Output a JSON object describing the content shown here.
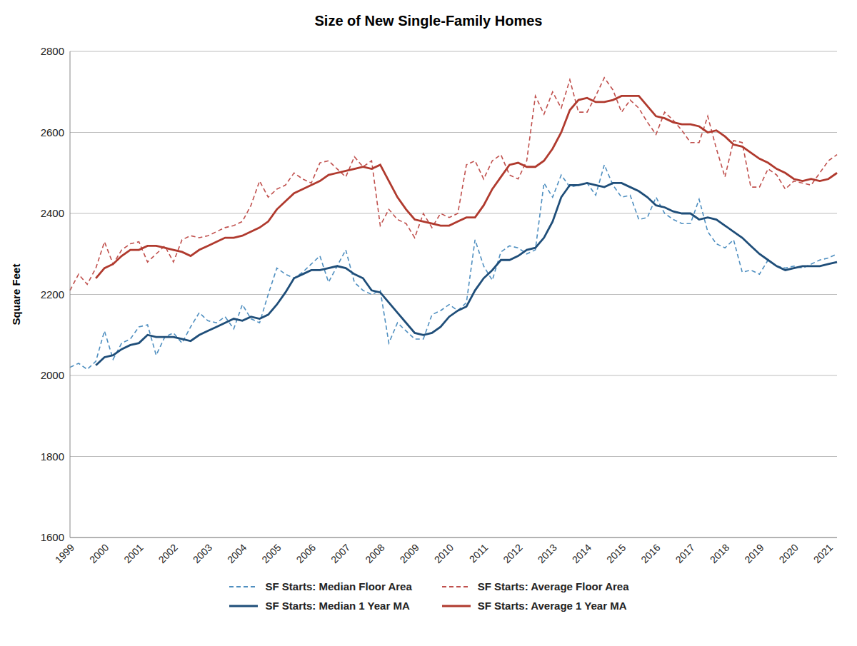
{
  "chart_data": {
    "type": "line",
    "title": "Size of New Single-Family Homes",
    "y_label": "Square Feet",
    "categories": [
      "1999",
      null,
      null,
      null,
      "2000",
      null,
      null,
      null,
      "2001",
      null,
      null,
      null,
      "2002",
      null,
      null,
      null,
      "2003",
      null,
      null,
      null,
      "2004",
      null,
      null,
      null,
      "2005",
      null,
      null,
      null,
      "2006",
      null,
      null,
      null,
      "2007",
      null,
      null,
      null,
      "2008",
      null,
      null,
      null,
      "2009",
      null,
      null,
      null,
      "2010",
      null,
      null,
      null,
      "2011",
      null,
      null,
      null,
      "2012",
      null,
      null,
      null,
      "2013",
      null,
      null,
      null,
      "2014",
      null,
      null,
      null,
      "2015",
      null,
      null,
      null,
      "2016",
      null,
      null,
      null,
      "2017",
      null,
      null,
      null,
      "2018",
      null,
      null,
      null,
      "2019",
      null,
      null,
      null,
      "2020",
      null,
      null,
      null,
      "2021",
      null
    ],
    "series": [
      {
        "name": "SF Starts: Median Floor Area",
        "color": "#4f8fc0",
        "line_style": "dashed",
        "values": [
          2020,
          2030,
          2015,
          2035,
          2110,
          2040,
          2080,
          2090,
          2120,
          2125,
          2050,
          2095,
          2105,
          2080,
          2120,
          2155,
          2135,
          2130,
          2145,
          2115,
          2175,
          2140,
          2130,
          2200,
          2265,
          2250,
          2240,
          2255,
          2275,
          2295,
          2230,
          2270,
          2310,
          2230,
          2210,
          2200,
          2210,
          2080,
          2130,
          2110,
          2090,
          2090,
          2150,
          2160,
          2175,
          2160,
          2180,
          2335,
          2270,
          2235,
          2305,
          2320,
          2315,
          2300,
          2310,
          2475,
          2440,
          2495,
          2465,
          2470,
          2475,
          2445,
          2520,
          2470,
          2440,
          2445,
          2385,
          2390,
          2440,
          2400,
          2385,
          2375,
          2375,
          2435,
          2355,
          2325,
          2315,
          2335,
          2255,
          2260,
          2250,
          2285,
          2270,
          2265,
          2270,
          2265,
          2275,
          2285,
          2290,
          2300
        ]
      },
      {
        "name": "SF Starts: Average Floor Area",
        "color": "#c0504d",
        "line_style": "dashed",
        "values": [
          2210,
          2250,
          2225,
          2265,
          2330,
          2275,
          2310,
          2325,
          2330,
          2280,
          2300,
          2320,
          2280,
          2335,
          2345,
          2340,
          2345,
          2355,
          2365,
          2370,
          2380,
          2420,
          2480,
          2440,
          2460,
          2470,
          2500,
          2485,
          2475,
          2525,
          2530,
          2510,
          2490,
          2540,
          2515,
          2530,
          2370,
          2410,
          2385,
          2375,
          2340,
          2400,
          2365,
          2400,
          2390,
          2400,
          2520,
          2530,
          2485,
          2530,
          2545,
          2495,
          2485,
          2530,
          2690,
          2645,
          2700,
          2660,
          2730,
          2650,
          2650,
          2690,
          2735,
          2705,
          2650,
          2680,
          2660,
          2625,
          2595,
          2650,
          2630,
          2605,
          2575,
          2575,
          2640,
          2560,
          2490,
          2580,
          2575,
          2465,
          2465,
          2510,
          2495,
          2460,
          2480,
          2475,
          2470,
          2500,
          2530,
          2545
        ]
      },
      {
        "name": "SF Starts: Median 1 Year MA",
        "color": "#1f4e79",
        "line_style": "solid",
        "values": [
          null,
          null,
          null,
          2025,
          2045,
          2050,
          2065,
          2075,
          2080,
          2100,
          2095,
          2095,
          2095,
          2090,
          2085,
          2100,
          2110,
          2120,
          2130,
          2140,
          2135,
          2145,
          2140,
          2150,
          2175,
          2205,
          2240,
          2250,
          2260,
          2260,
          2265,
          2270,
          2265,
          2250,
          2240,
          2210,
          2205,
          2180,
          2155,
          2130,
          2105,
          2100,
          2105,
          2120,
          2145,
          2160,
          2170,
          2210,
          2240,
          2260,
          2285,
          2285,
          2295,
          2310,
          2315,
          2340,
          2380,
          2440,
          2470,
          2470,
          2475,
          2470,
          2465,
          2475,
          2475,
          2465,
          2455,
          2440,
          2420,
          2415,
          2405,
          2400,
          2400,
          2385,
          2390,
          2385,
          2370,
          2355,
          2340,
          2320,
          2300,
          2285,
          2270,
          2260,
          2265,
          2270,
          2270,
          2270,
          2275,
          2280
        ]
      },
      {
        "name": "SF Starts: Average 1 Year MA",
        "color": "#b03a2e",
        "line_style": "solid",
        "values": [
          null,
          null,
          null,
          2240,
          2265,
          2275,
          2295,
          2310,
          2310,
          2320,
          2320,
          2315,
          2310,
          2305,
          2295,
          2310,
          2320,
          2330,
          2340,
          2340,
          2345,
          2355,
          2365,
          2380,
          2410,
          2430,
          2450,
          2460,
          2470,
          2480,
          2495,
          2500,
          2505,
          2510,
          2515,
          2510,
          2520,
          2480,
          2440,
          2410,
          2385,
          2380,
          2375,
          2370,
          2370,
          2380,
          2390,
          2390,
          2420,
          2460,
          2490,
          2520,
          2525,
          2515,
          2515,
          2530,
          2560,
          2600,
          2655,
          2680,
          2685,
          2675,
          2675,
          2680,
          2690,
          2690,
          2690,
          2665,
          2640,
          2635,
          2625,
          2620,
          2620,
          2615,
          2600,
          2605,
          2590,
          2570,
          2565,
          2550,
          2535,
          2525,
          2510,
          2500,
          2485,
          2480,
          2485,
          2480,
          2485,
          2500
        ]
      }
    ],
    "ylim": [
      1600,
      2800
    ],
    "yticks": [
      1600,
      1800,
      2000,
      2200,
      2400,
      2600,
      2800
    ],
    "grid": true,
    "legend": "bottom"
  }
}
